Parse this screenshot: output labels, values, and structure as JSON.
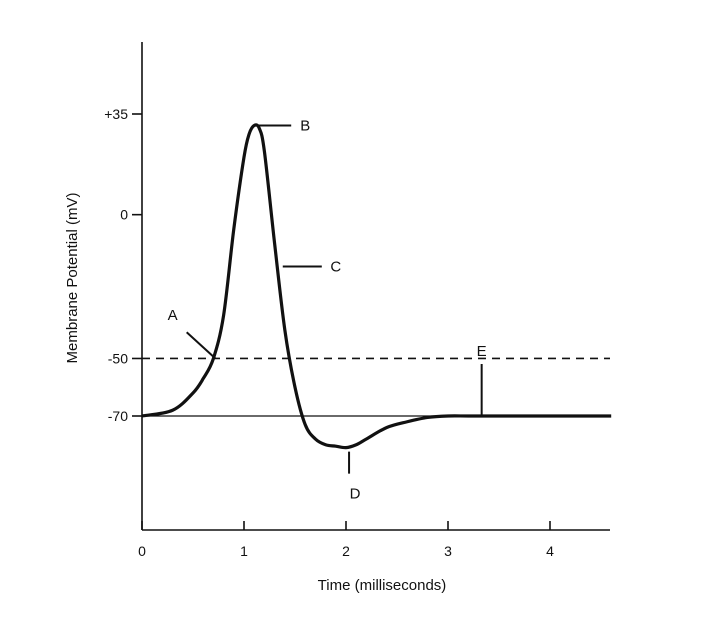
{
  "chart_data": {
    "type": "line",
    "title": "",
    "xlabel": "Time (milliseconds)",
    "ylabel": "Membrane Potential (mV)",
    "xlim": [
      0,
      4.6
    ],
    "ylim": [
      -100,
      50
    ],
    "x_ticks": [
      0,
      1,
      2,
      3,
      4
    ],
    "y_ticks": [
      35,
      0,
      -50,
      -70
    ],
    "y_tick_labels": [
      "+35",
      "0",
      "-50",
      "-70"
    ],
    "grid": false,
    "reference_lines": [
      {
        "y": -50,
        "style": "dashed"
      },
      {
        "y": -70,
        "style": "solid"
      }
    ],
    "series": [
      {
        "x": [
          0,
          0.3,
          0.5,
          0.6,
          0.7,
          0.8,
          0.9,
          1.0,
          1.05,
          1.1,
          1.15,
          1.2,
          1.3,
          1.4,
          1.5,
          1.6,
          1.7,
          1.8,
          1.9,
          2.0,
          2.1,
          2.2,
          2.4,
          2.6,
          2.8,
          3.0,
          3.2,
          3.5,
          4.0,
          4.6
        ],
        "y": [
          -70,
          -68,
          -62,
          -57,
          -50,
          -35,
          -5,
          20,
          28,
          31,
          30,
          22,
          -10,
          -40,
          -60,
          -73,
          -78,
          -80,
          -80.5,
          -81,
          -80,
          -78,
          -74,
          -72,
          -70.5,
          -70,
          -70,
          -70,
          -70,
          -70
        ]
      }
    ],
    "annotations": [
      {
        "label": "A",
        "x": 0.72,
        "y": -50,
        "text_x": 0.34,
        "text_y": -36
      },
      {
        "label": "B",
        "x": 1.1,
        "y": 31,
        "text_x": 1.6,
        "text_y": 31
      },
      {
        "label": "C",
        "x": 1.38,
        "y": -18,
        "text_x": 1.9,
        "text_y": -18
      },
      {
        "label": "D",
        "x": 2.03,
        "y": -81,
        "text_x": 2.08,
        "text_y": -97
      },
      {
        "label": "E",
        "x": 3.33,
        "y": -70,
        "text_x": 3.33,
        "text_y": -41
      }
    ]
  }
}
